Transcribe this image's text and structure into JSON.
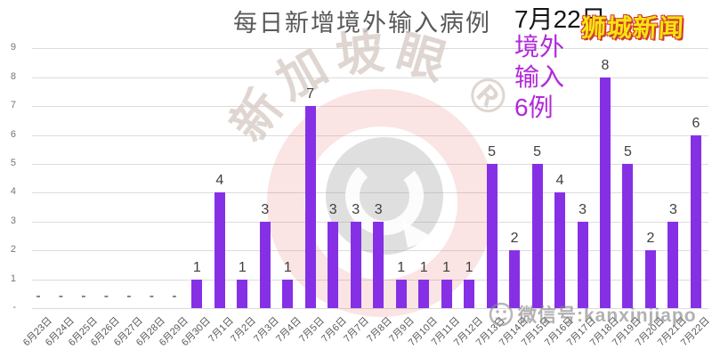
{
  "header": {
    "title": "每日新增境外输入病例",
    "date_label": "7月22日",
    "annotation_lines": [
      "境外",
      "输入",
      "6例"
    ],
    "annotation_color": "#b229d8",
    "brand_badge": "狮城新闻",
    "brand_badge_color": "#f6e40e",
    "brand_badge_outline": "#d03a2e"
  },
  "watermark": {
    "logo_text": "新加坡眼 ®",
    "wechat_text": "微信号:kanxinjiapo"
  },
  "chart_data": {
    "type": "bar",
    "title": "每日新增境外输入病例",
    "categories": [
      "6月23日",
      "6月24日",
      "6月25日",
      "6月26日",
      "6月27日",
      "6月28日",
      "6月29日",
      "6月30日",
      "7月1日",
      "7月2日",
      "7月3日",
      "7月4日",
      "7月5日",
      "7月6日",
      "7月7日",
      "7月8日",
      "7月9日",
      "7月10日",
      "7月11日",
      "7月12日",
      "7月13日",
      "7月14日",
      "7月15日",
      "7月16日",
      "7月17日",
      "7月18日",
      "7月19日",
      "7月20日",
      "7月21日",
      "7月22日"
    ],
    "values": [
      null,
      null,
      null,
      null,
      null,
      null,
      null,
      1,
      4,
      1,
      3,
      1,
      7,
      3,
      3,
      3,
      1,
      1,
      1,
      1,
      5,
      2,
      5,
      4,
      3,
      8,
      5,
      2,
      3,
      6
    ],
    "null_label": "-",
    "bar_color": "#8630e6",
    "xlabel": "",
    "ylabel": "",
    "ylim": [
      0,
      9
    ],
    "yticks": [
      9,
      8,
      7,
      6,
      5,
      4,
      3,
      2,
      1,
      0
    ],
    "ytick_labels": [
      "9",
      "8",
      "7",
      "6",
      "5",
      "4",
      "3",
      "2",
      "1",
      "-"
    ],
    "grid": true,
    "legend": false
  }
}
